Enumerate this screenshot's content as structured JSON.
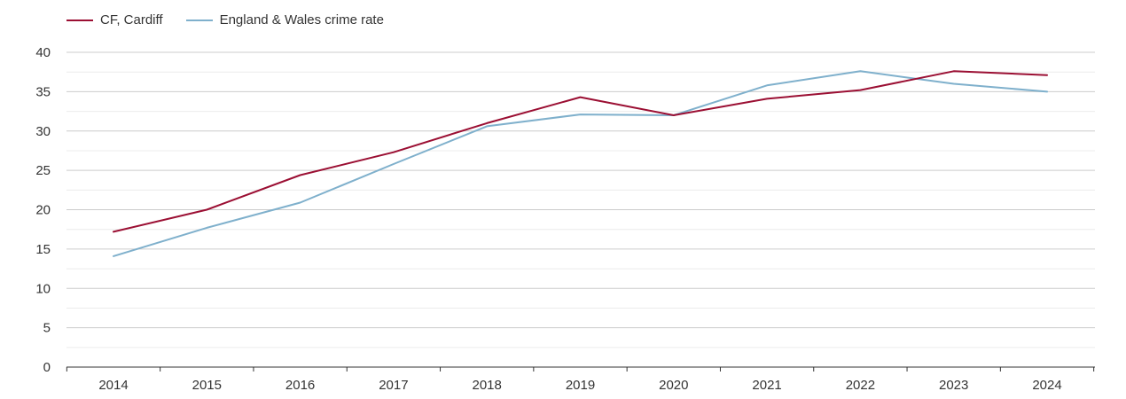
{
  "chart_data": {
    "type": "line",
    "title": "",
    "xlabel": "",
    "ylabel": "",
    "categories": [
      "2014",
      "2015",
      "2016",
      "2017",
      "2018",
      "2019",
      "2020",
      "2021",
      "2022",
      "2023",
      "2024"
    ],
    "ylim": [
      0,
      40
    ],
    "yticks": [
      "0",
      "5",
      "10",
      "15",
      "20",
      "25",
      "30",
      "35",
      "40"
    ],
    "grid": true,
    "legend_position": "top-left",
    "series": [
      {
        "name": "CF, Cardiff",
        "color": "#9b0f33",
        "values": [
          17.2,
          20.0,
          24.4,
          27.3,
          31.0,
          34.3,
          32.0,
          34.1,
          35.2,
          37.6,
          37.1
        ]
      },
      {
        "name": "England & Wales crime rate",
        "color": "#7fb0cc",
        "values": [
          14.1,
          17.7,
          20.9,
          25.8,
          30.6,
          32.1,
          32.0,
          35.8,
          37.6,
          36.0,
          35.0
        ]
      }
    ]
  }
}
